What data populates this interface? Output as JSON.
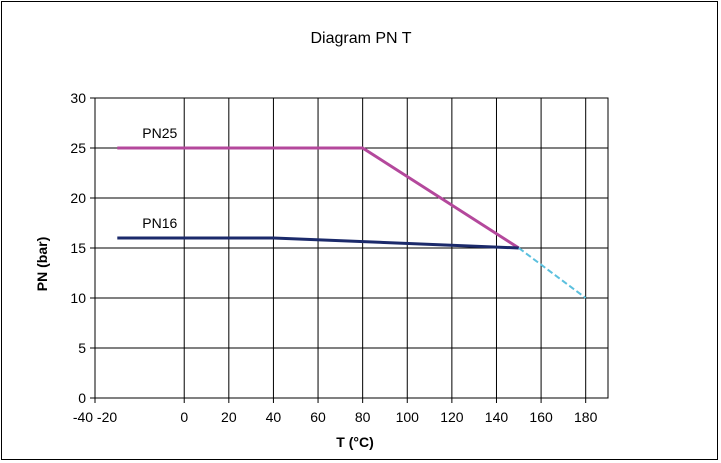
{
  "chart_data": {
    "type": "line",
    "title": "Diagram PN T",
    "xlabel": "T (°C)",
    "ylabel": "PN (bar)",
    "xlim": [
      -40,
      190
    ],
    "ylim": [
      0,
      30
    ],
    "x_ticks": [
      -40,
      0,
      20,
      40,
      60,
      80,
      100,
      120,
      140,
      160,
      180
    ],
    "x_tick_labels": [
      "-40 -20",
      "0",
      "20",
      "40",
      "60",
      "80",
      "100",
      "120",
      "140",
      "160",
      "180"
    ],
    "y_ticks": [
      0,
      5,
      10,
      15,
      20,
      25,
      30
    ],
    "grid": true,
    "series": [
      {
        "name": "PN25",
        "color": "#b4489c",
        "x": [
          -30,
          80,
          150
        ],
        "y": [
          25,
          25,
          15
        ]
      },
      {
        "name": "PN16",
        "color": "#1b2a6b",
        "x": [
          -30,
          40,
          150
        ],
        "y": [
          16,
          16,
          15
        ]
      },
      {
        "name": "",
        "color": "#5bc0de",
        "dashed": true,
        "x": [
          150,
          180
        ],
        "y": [
          15,
          10
        ]
      }
    ]
  }
}
